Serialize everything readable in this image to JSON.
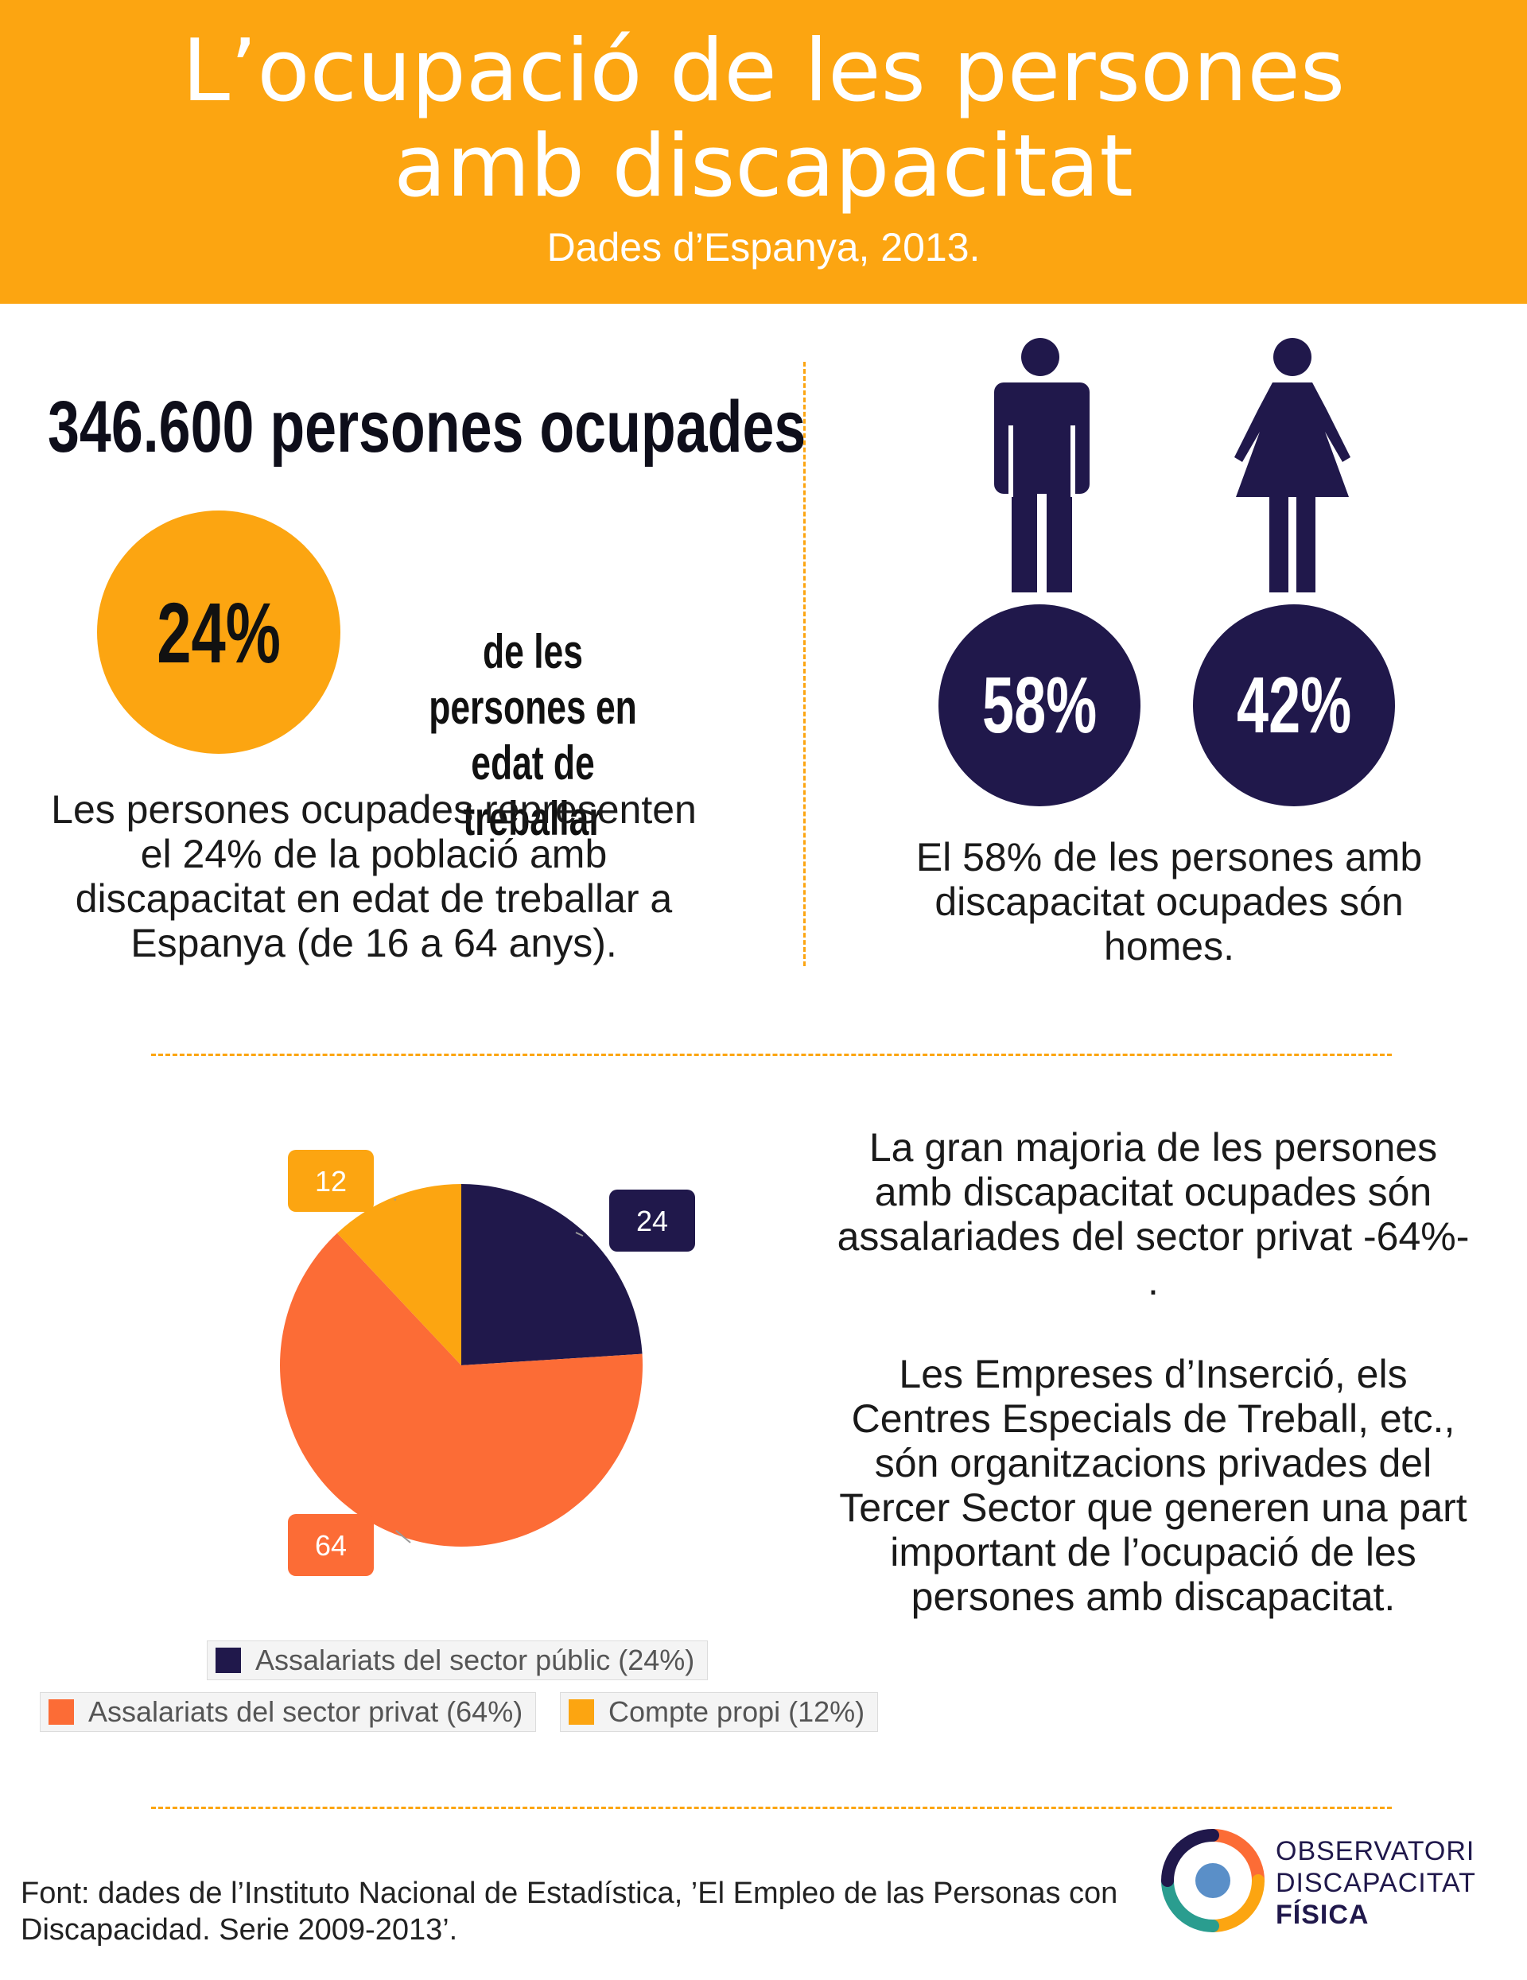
{
  "header": {
    "title": "L’ocupació de les persones\namb discapacitat",
    "subtitle": "Dades d’Espanya, 2013."
  },
  "employment": {
    "headline": "346.600 persones ocupades",
    "percent": "24%",
    "percent_caption": "de les persones en\nedat de treballar",
    "description": "Les persones ocupades representen el 24% de la població amb discapacitat en edat de treballar a Espanya (de 16 a 64 anys)."
  },
  "gender": {
    "men_icon": "man-icon",
    "women_icon": "woman-icon",
    "men_percent": "58%",
    "women_percent": "42%",
    "description": "El 58% de les persones amb discapacitat ocupades són homes."
  },
  "chart_data": {
    "type": "pie",
    "categories": [
      "Assalariats del sector públic (24%)",
      "Assalariats del sector privat (64%)",
      "Compte propi (12%)"
    ],
    "values": [
      24,
      64,
      12
    ],
    "data_labels": [
      "24",
      "64",
      "12"
    ],
    "colors": [
      "#20184b",
      "#fc6c36",
      "#fca511"
    ],
    "legend_position": "bottom"
  },
  "sector_text": {
    "paragraph1": "La gran majoria de les persones amb discapacitat ocupades són assalariades del sector privat -64%- .",
    "paragraph2": "Les Empreses d’Inserció, els Centres Especials de Treball, etc., són organitzacions privades del Tercer Sector que generen una part important de l’ocupació de les persones amb discapacitat."
  },
  "footer": {
    "source": "Font: dades de l’Instituto Nacional de Estadística, ’El Empleo de las Personas con Discapacidad. Serie 2009-2013’.",
    "logo_line1": "OBSERVATORI",
    "logo_line2": "DISCAPACITAT",
    "logo_line3": "FÍSICA"
  },
  "colors": {
    "accent_orange": "#fca511",
    "navy": "#20184b",
    "coral": "#fc6c36"
  }
}
